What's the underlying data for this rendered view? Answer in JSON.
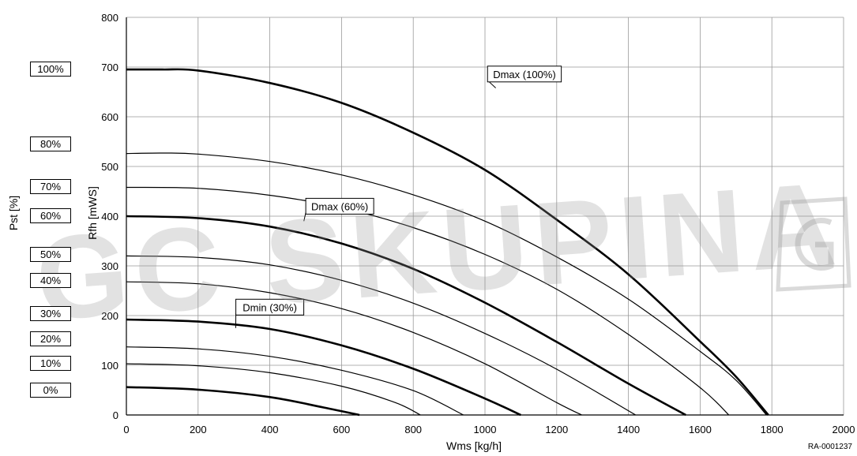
{
  "chart_data": {
    "type": "line",
    "xlabel": "Wms [kg/h]",
    "ylabel": "Rfh [mWS]",
    "ylabel_secondary": "Pst [%]",
    "xlim": [
      0,
      2000
    ],
    "ylim": [
      0,
      800
    ],
    "x_ticks": [
      "0",
      "200",
      "400",
      "600",
      "800",
      "1000",
      "1200",
      "1400",
      "1600",
      "1800",
      "2000"
    ],
    "y_ticks": [
      "0",
      "100",
      "200",
      "300",
      "400",
      "500",
      "600",
      "700",
      "800"
    ],
    "grid": true,
    "series": [
      {
        "name": "Dmax (100%)",
        "thick": true,
        "x": [
          0,
          100,
          200,
          400,
          600,
          800,
          1000,
          1200,
          1400,
          1600,
          1700,
          1790
        ],
        "y": [
          695,
          695,
          693,
          668,
          628,
          568,
          493,
          393,
          283,
          148,
          77,
          0
        ]
      },
      {
        "thick": false,
        "x": [
          0,
          100,
          200,
          400,
          600,
          800,
          1000,
          1200,
          1400,
          1600,
          1700,
          1785
        ],
        "y": [
          526,
          527,
          525,
          510,
          483,
          443,
          390,
          318,
          233,
          128,
          70,
          0
        ]
      },
      {
        "thick": false,
        "x": [
          0,
          200,
          400,
          600,
          800,
          1000,
          1200,
          1400,
          1600,
          1680
        ],
        "y": [
          458,
          456,
          442,
          417,
          377,
          323,
          253,
          162,
          55,
          0
        ]
      },
      {
        "name": "Dmax (60%)",
        "thick": true,
        "x": [
          0,
          200,
          400,
          600,
          800,
          1000,
          1200,
          1400,
          1560
        ],
        "y": [
          400,
          396,
          379,
          345,
          294,
          226,
          147,
          63,
          0
        ]
      },
      {
        "thick": false,
        "x": [
          0,
          200,
          400,
          600,
          800,
          1000,
          1200,
          1420
        ],
        "y": [
          320,
          317,
          302,
          271,
          225,
          164,
          92,
          0
        ]
      },
      {
        "thick": false,
        "x": [
          0,
          200,
          400,
          600,
          800,
          1000,
          1200,
          1270
        ],
        "y": [
          268,
          264,
          246,
          214,
          166,
          103,
          25,
          0
        ]
      },
      {
        "name": "Dmin (30%)",
        "thick": true,
        "x": [
          0,
          200,
          400,
          600,
          800,
          1000,
          1100
        ],
        "y": [
          192,
          188,
          173,
          140,
          93,
          33,
          0
        ]
      },
      {
        "thick": false,
        "x": [
          0,
          200,
          400,
          600,
          800,
          940
        ],
        "y": [
          137,
          133,
          118,
          90,
          49,
          0
        ]
      },
      {
        "thick": false,
        "x": [
          0,
          200,
          400,
          600,
          750,
          820
        ],
        "y": [
          103,
          99,
          85,
          58,
          25,
          0
        ]
      },
      {
        "thick": true,
        "x": [
          0,
          200,
          400,
          550,
          650
        ],
        "y": [
          56,
          51,
          36,
          15,
          0
        ]
      }
    ],
    "annotations": [
      {
        "text": "Dmax (100%)",
        "x": 1110,
        "y": 686,
        "target": [
          1030,
          658
        ]
      },
      {
        "text": "Dmax (60%)",
        "x": 595,
        "y": 420,
        "target": [
          495,
          390
        ]
      },
      {
        "text": "Dmin (30%)",
        "x": 400,
        "y": 217,
        "target": [
          305,
          175
        ]
      }
    ]
  },
  "pst_scale": [
    {
      "label": "100%",
      "value": 695
    },
    {
      "label": "80%",
      "value": 545
    },
    {
      "label": "70%",
      "value": 458
    },
    {
      "label": "60%",
      "value": 400
    },
    {
      "label": "50%",
      "value": 323
    },
    {
      "label": "40%",
      "value": 270
    },
    {
      "label": "30%",
      "value": 203
    },
    {
      "label": "20%",
      "value": 153
    },
    {
      "label": "10%",
      "value": 103
    },
    {
      "label": "0%",
      "value": 50
    }
  ],
  "doc_id": "RA-0001237",
  "watermark": "GC SKUPINA",
  "colors": {
    "line": "#000000",
    "grid": "#999999",
    "watermark": "#969696"
  }
}
